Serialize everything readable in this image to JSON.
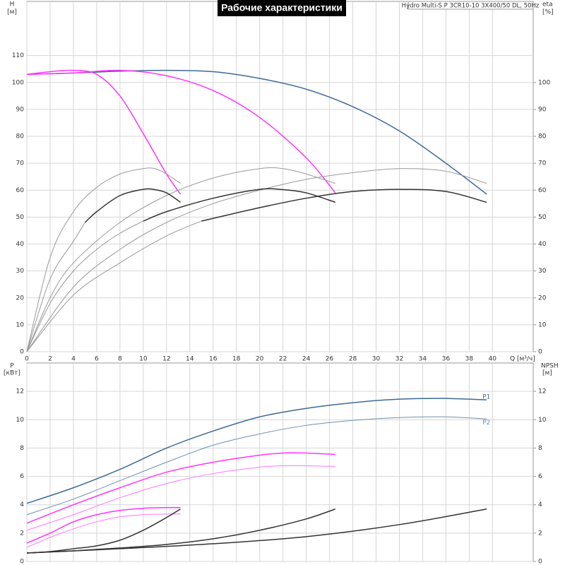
{
  "chart_data": [
    {
      "type": "line",
      "title": "Рабочие характеристики",
      "subtitle": "Hydro Multi-S P 3CR10-10 3X400/50 DL, 50Hz",
      "ylabel": "H",
      "ylabel_unit": "[м]",
      "y2label": "eta",
      "y2label_unit": "[%]",
      "xlabel": "Q [м³/ч]",
      "xlim": [
        0,
        43.5
      ],
      "xticks": [
        0,
        2,
        4,
        6,
        8,
        10,
        12,
        14,
        16,
        18,
        20,
        22,
        24,
        26,
        28,
        30,
        32,
        34,
        36,
        38,
        40
      ],
      "ylim": [
        0,
        128
      ],
      "yticks": [
        0,
        10,
        20,
        30,
        40,
        50,
        60,
        70,
        80,
        90,
        100,
        110
      ],
      "y2lim": [
        0,
        128
      ],
      "y2ticks": [
        0,
        10,
        20,
        30,
        40,
        50,
        60,
        70,
        80,
        90,
        100
      ],
      "grid": true,
      "series": [
        {
          "color": "#3d6a96",
          "linewidth": 1.5,
          "x": [
            0,
            4,
            8,
            12,
            16,
            20,
            24,
            28,
            32,
            36,
            39.5
          ],
          "values": [
            103,
            103.5,
            104.2,
            104.5,
            104,
            101.5,
            97.5,
            91,
            82,
            70,
            58.5
          ]
        },
        {
          "color": "#ff33ff",
          "linewidth": 1.5,
          "x": [
            0,
            4,
            8,
            12,
            16,
            20,
            24,
            26.5
          ],
          "values": [
            103,
            103.5,
            104.5,
            102.5,
            97,
            87,
            72,
            59
          ]
        },
        {
          "color": "#ff33ff",
          "linewidth": 1.5,
          "x": [
            0,
            2,
            4,
            6,
            8,
            10,
            12,
            13.2
          ],
          "values": [
            103,
            104,
            104.5,
            103,
            95,
            81,
            66,
            58.5
          ]
        },
        {
          "color": "#999999",
          "linewidth": 1,
          "x": [
            0,
            2,
            4,
            6,
            8,
            10,
            11,
            12,
            13.2
          ],
          "values": [
            0,
            35,
            52,
            61,
            66,
            68,
            68,
            66,
            62.5
          ]
        },
        {
          "color": "#999999",
          "linewidth": 1,
          "x": [
            0,
            2,
            4,
            8,
            12,
            16,
            20,
            22,
            24,
            26.5
          ],
          "values": [
            0,
            20,
            33,
            48,
            58,
            64.5,
            68,
            68,
            66,
            62.5
          ]
        },
        {
          "color": "#999999",
          "linewidth": 1,
          "x": [
            0,
            4,
            8,
            12,
            16,
            20,
            24,
            28,
            32,
            36,
            39.5
          ],
          "values": [
            0,
            24,
            38,
            48,
            55,
            60,
            64,
            66.5,
            68,
            67,
            62.5
          ]
        },
        {
          "color": "#999999",
          "linewidth": 1,
          "x": [
            0,
            2,
            4,
            5
          ],
          "values": [
            0,
            27,
            41,
            48
          ]
        },
        {
          "color": "#999999",
          "linewidth": 1,
          "x": [
            0,
            2,
            4,
            6,
            8,
            10
          ],
          "values": [
            0,
            18,
            30,
            38,
            44,
            48.5
          ]
        },
        {
          "color": "#999999",
          "linewidth": 1,
          "x": [
            0,
            4,
            8,
            12,
            15
          ],
          "values": [
            0,
            21,
            33,
            43,
            48.5
          ]
        },
        {
          "color": "#333333",
          "linewidth": 1.5,
          "x": [
            5,
            6,
            8,
            10,
            11,
            12,
            13.2
          ],
          "values": [
            48,
            52,
            58,
            60.3,
            60.2,
            59,
            55.5
          ]
        },
        {
          "color": "#333333",
          "linewidth": 1.5,
          "x": [
            10,
            12,
            16,
            20,
            22,
            24,
            26.5
          ],
          "values": [
            48.5,
            52,
            57,
            60.3,
            60.2,
            59,
            55.5
          ]
        },
        {
          "color": "#333333",
          "linewidth": 1.5,
          "x": [
            15,
            20,
            24,
            28,
            32,
            36,
            39.5
          ],
          "values": [
            48.5,
            53.5,
            57,
            59.5,
            60.3,
            59.5,
            55.5
          ]
        }
      ]
    },
    {
      "type": "line",
      "ylabel": "P",
      "ylabel_unit": "[кВт]",
      "y2label": "NPSH",
      "y2label_unit": "[м]",
      "xlim": [
        0,
        43.5
      ],
      "ylim": [
        0,
        14
      ],
      "yticks": [
        0,
        2,
        4,
        6,
        8,
        10,
        12
      ],
      "y2lim": [
        0,
        14
      ],
      "y2ticks": [
        0,
        2,
        4,
        6,
        8,
        10,
        12
      ],
      "grid": true,
      "series": [
        {
          "name": "P1",
          "color": "#3d6a96",
          "linewidth": 1.5,
          "x": [
            0,
            4,
            8,
            12,
            16,
            20,
            24,
            28,
            32,
            36,
            39.5
          ],
          "values": [
            4.1,
            5.2,
            6.5,
            8.0,
            9.2,
            10.2,
            10.8,
            11.2,
            11.45,
            11.5,
            11.4
          ]
        },
        {
          "name": "P2",
          "color": "#6f8fb0",
          "linewidth": 1,
          "x": [
            0,
            4,
            8,
            12,
            16,
            20,
            24,
            28,
            32,
            36,
            39.5
          ],
          "values": [
            3.3,
            4.4,
            5.7,
            7.0,
            8.2,
            9.0,
            9.6,
            9.95,
            10.15,
            10.2,
            10.05
          ]
        },
        {
          "color": "#ff33ff",
          "linewidth": 1.5,
          "x": [
            0,
            4,
            8,
            12,
            16,
            20,
            22,
            24,
            26.5
          ],
          "values": [
            2.7,
            4.0,
            5.2,
            6.3,
            7.0,
            7.5,
            7.65,
            7.65,
            7.55
          ]
        },
        {
          "color": "#ff77ff",
          "linewidth": 1,
          "x": [
            0,
            4,
            8,
            12,
            16,
            20,
            22,
            24,
            26.5
          ],
          "values": [
            2.2,
            3.3,
            4.5,
            5.5,
            6.2,
            6.65,
            6.75,
            6.75,
            6.7
          ]
        },
        {
          "color": "#ff33ff",
          "linewidth": 1.5,
          "x": [
            0,
            2,
            4,
            6,
            8,
            10,
            12,
            13.2
          ],
          "values": [
            1.3,
            2.0,
            2.8,
            3.3,
            3.6,
            3.75,
            3.8,
            3.8
          ]
        },
        {
          "color": "#ff77ff",
          "linewidth": 1,
          "x": [
            0,
            2,
            4,
            6,
            8,
            10,
            12,
            13.2
          ],
          "values": [
            1.0,
            1.7,
            2.3,
            2.8,
            3.15,
            3.3,
            3.35,
            3.35
          ]
        },
        {
          "color": "#333333",
          "linewidth": 1.5,
          "axis": "y2",
          "x": [
            0,
            2,
            4,
            6,
            8,
            10,
            12,
            13.2
          ],
          "values": [
            0.6,
            0.7,
            0.9,
            1.1,
            1.5,
            2.2,
            3.1,
            3.7
          ]
        },
        {
          "color": "#333333",
          "linewidth": 1.5,
          "axis": "y2",
          "x": [
            0,
            4,
            8,
            12,
            16,
            20,
            24,
            26.5
          ],
          "values": [
            0.6,
            0.75,
            0.95,
            1.2,
            1.6,
            2.2,
            3.0,
            3.7
          ]
        },
        {
          "color": "#333333",
          "linewidth": 1.5,
          "axis": "y2",
          "x": [
            0,
            8,
            16,
            24,
            32,
            39.5
          ],
          "values": [
            0.6,
            0.9,
            1.25,
            1.75,
            2.6,
            3.7
          ]
        }
      ]
    }
  ]
}
